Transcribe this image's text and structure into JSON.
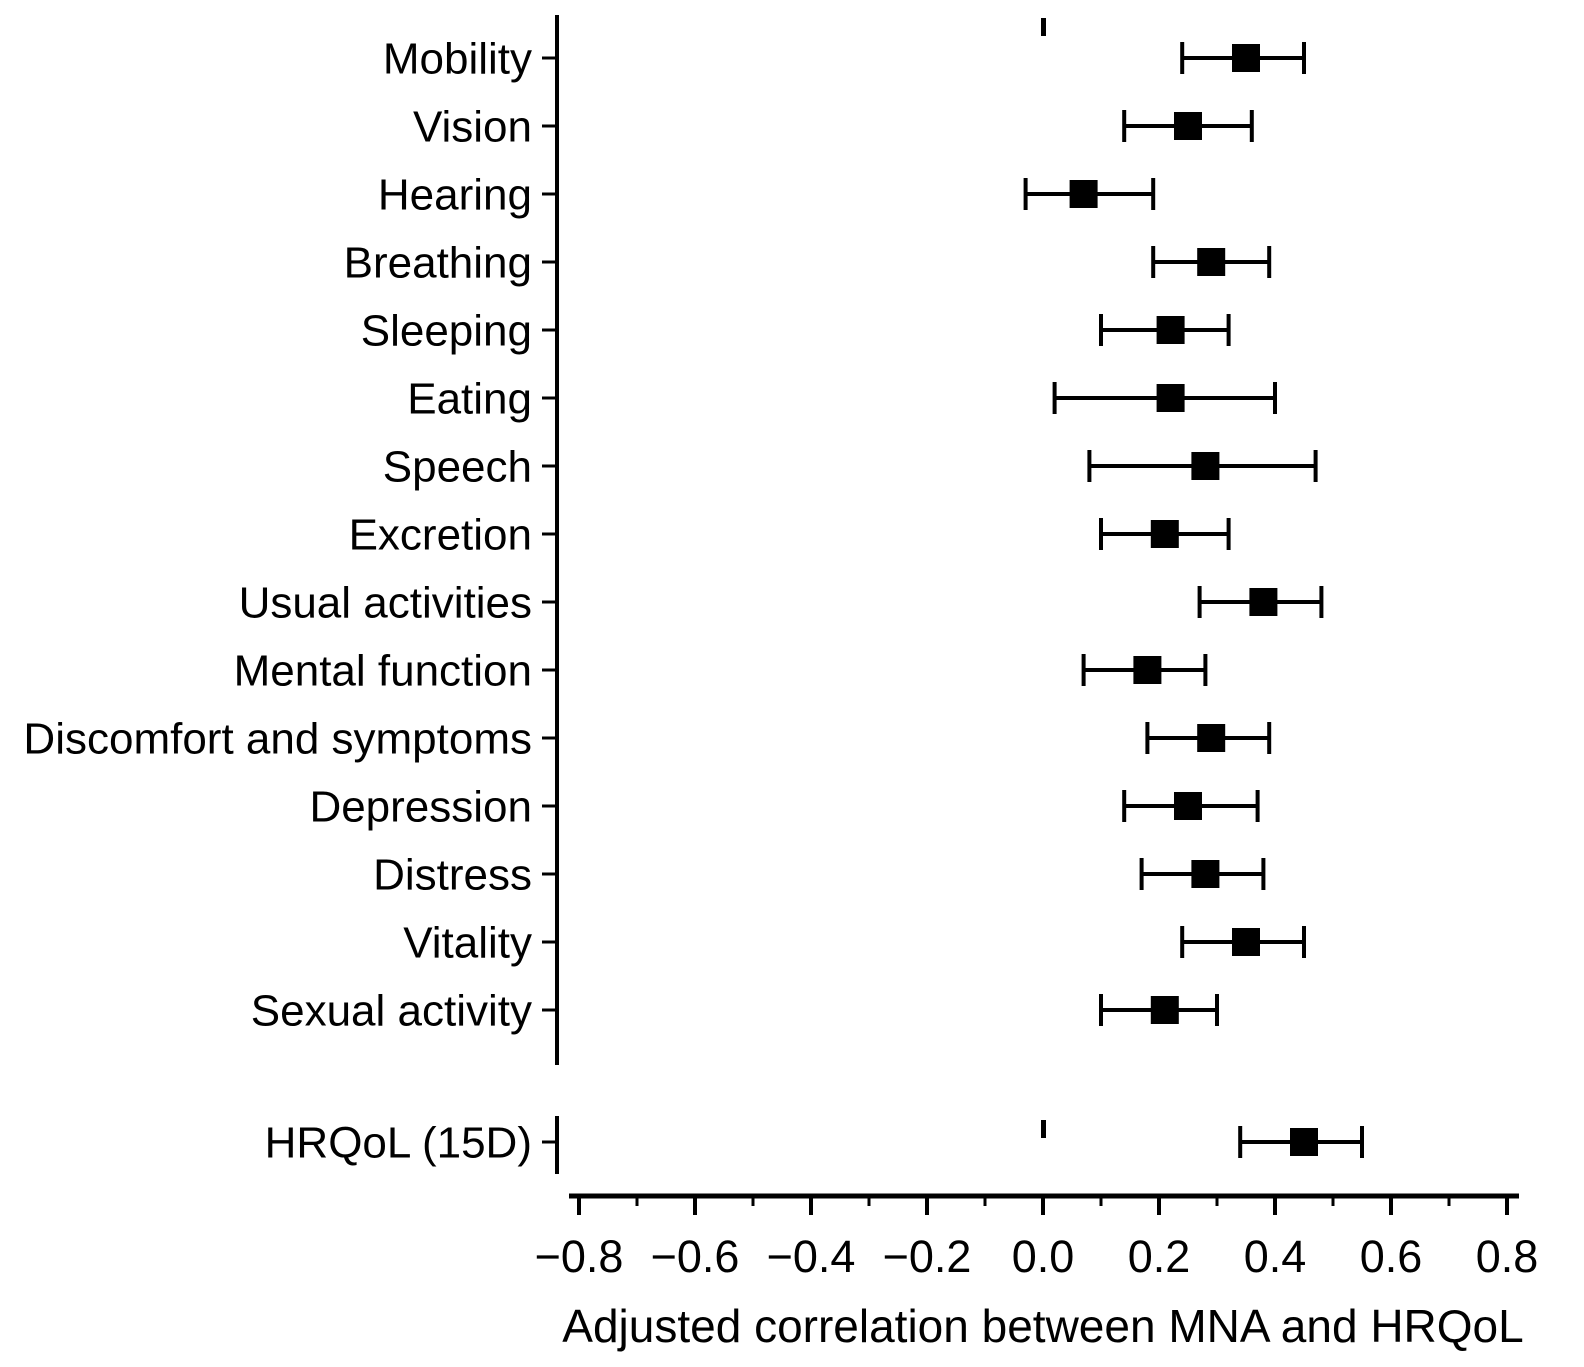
{
  "figure": {
    "background": "#ffffff",
    "axis_color": "#000000",
    "marker_color": "#000000"
  },
  "chart_data": {
    "type": "scatter",
    "subtype": "horizontal-forest-plot-with-error-bars",
    "title": "",
    "xlabel": "Adjusted correlation between MNA and HRQoL",
    "ylabel": "",
    "xlim": [
      -0.8,
      0.8
    ],
    "x_major_tick_step": 0.2,
    "x_minor_tick_step": 0.1,
    "grid": false,
    "legend": false,
    "marker": "filled-square",
    "error_bar_style": "horizontal line with end caps",
    "x_ticks": [
      {
        "v": -0.8,
        "label": "−0.8"
      },
      {
        "v": -0.6,
        "label": "−0.6"
      },
      {
        "v": -0.4,
        "label": "−0.4"
      },
      {
        "v": -0.2,
        "label": "−0.2"
      },
      {
        "v": 0.0,
        "label": "0.0"
      },
      {
        "v": 0.2,
        "label": "0.2"
      },
      {
        "v": 0.4,
        "label": "0.4"
      },
      {
        "v": 0.6,
        "label": "0.6"
      },
      {
        "v": 0.8,
        "label": "0.8"
      }
    ],
    "rows": [
      {
        "label": "Mobility",
        "value": 0.35,
        "ci_low": 0.24,
        "ci_high": 0.45
      },
      {
        "label": "Vision",
        "value": 0.25,
        "ci_low": 0.14,
        "ci_high": 0.36
      },
      {
        "label": "Hearing",
        "value": 0.07,
        "ci_low": -0.03,
        "ci_high": 0.19
      },
      {
        "label": "Breathing",
        "value": 0.29,
        "ci_low": 0.19,
        "ci_high": 0.39
      },
      {
        "label": "Sleeping",
        "value": 0.22,
        "ci_low": 0.1,
        "ci_high": 0.32
      },
      {
        "label": "Eating",
        "value": 0.22,
        "ci_low": 0.02,
        "ci_high": 0.4
      },
      {
        "label": "Speech",
        "value": 0.28,
        "ci_low": 0.08,
        "ci_high": 0.47
      },
      {
        "label": "Excretion",
        "value": 0.21,
        "ci_low": 0.1,
        "ci_high": 0.32
      },
      {
        "label": "Usual activities",
        "value": 0.38,
        "ci_low": 0.27,
        "ci_high": 0.48
      },
      {
        "label": "Mental function",
        "value": 0.18,
        "ci_low": 0.07,
        "ci_high": 0.28
      },
      {
        "label": "Discomfort and symptoms",
        "value": 0.29,
        "ci_low": 0.18,
        "ci_high": 0.39
      },
      {
        "label": "Depression",
        "value": 0.25,
        "ci_low": 0.14,
        "ci_high": 0.37
      },
      {
        "label": "Distress",
        "value": 0.28,
        "ci_low": 0.17,
        "ci_high": 0.38
      },
      {
        "label": "Vitality",
        "value": 0.35,
        "ci_low": 0.24,
        "ci_high": 0.45
      },
      {
        "label": "Sexual activity",
        "value": 0.21,
        "ci_low": 0.1,
        "ci_high": 0.3
      }
    ],
    "overall": {
      "label": "HRQoL (15D)",
      "value": 0.45,
      "ci_low": 0.34,
      "ci_high": 0.55
    },
    "zero_reference_marks": [
      "top-of-main-panel",
      "top-of-overall-panel"
    ]
  }
}
